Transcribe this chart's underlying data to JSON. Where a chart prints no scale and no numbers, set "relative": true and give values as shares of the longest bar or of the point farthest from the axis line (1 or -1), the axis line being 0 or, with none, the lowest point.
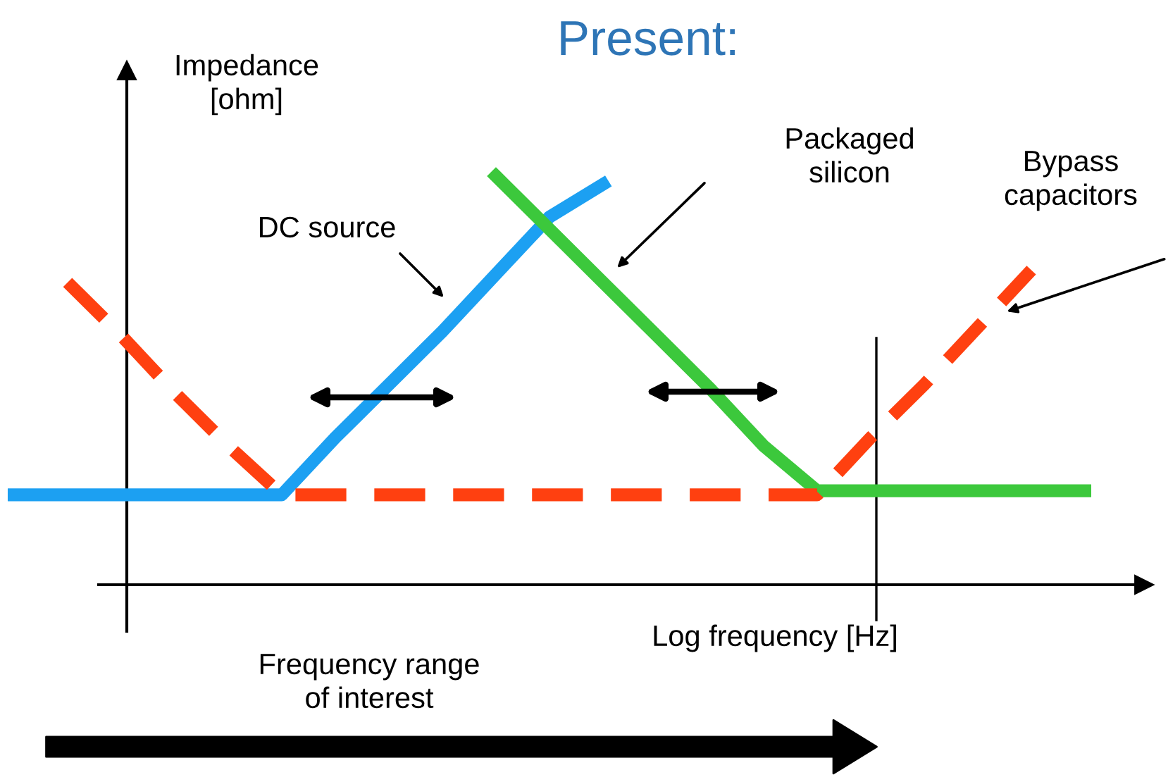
{
  "chart_data": {
    "type": "line",
    "title": "Present:",
    "xlabel": "Log frequency [Hz]",
    "ylabel": "Impedance\n[ohm]",
    "relative": true,
    "categories": [
      null,
      null,
      null,
      null,
      null,
      null,
      null,
      null,
      null,
      null,
      null,
      null,
      null,
      null,
      null,
      null,
      null,
      null,
      null,
      null,
      null
    ],
    "series": [
      {
        "color": "#1ca0f2",
        "line_style": "solid",
        "values": [
          0.22,
          0.22,
          0.22,
          0.22,
          0.22,
          0.22,
          0.36,
          0.49,
          0.62,
          0.76,
          0.9,
          0.98,
          null,
          null,
          null,
          null,
          null,
          null,
          null,
          null,
          null
        ]
      },
      {
        "color": "#3cc83c",
        "line_style": "solid",
        "values": [
          null,
          null,
          null,
          null,
          null,
          null,
          null,
          null,
          null,
          1.0,
          0.87,
          0.74,
          0.61,
          0.48,
          0.34,
          0.23,
          0.23,
          0.23,
          0.23,
          0.23,
          0.23
        ]
      },
      {
        "color": "#ff4010",
        "line_style": "dashed",
        "values": [
          null,
          0.74,
          0.61,
          0.47,
          0.34,
          0.22,
          0.22,
          0.22,
          0.22,
          0.22,
          0.22,
          0.22,
          0.22,
          0.22,
          0.22,
          0.22,
          0.36,
          0.49,
          0.63,
          0.77,
          null
        ]
      }
    ],
    "annotations": [
      "DC source",
      "Packaged\nsilicon",
      "Bypass\ncapacitors",
      "Frequency range\nof interest"
    ]
  }
}
